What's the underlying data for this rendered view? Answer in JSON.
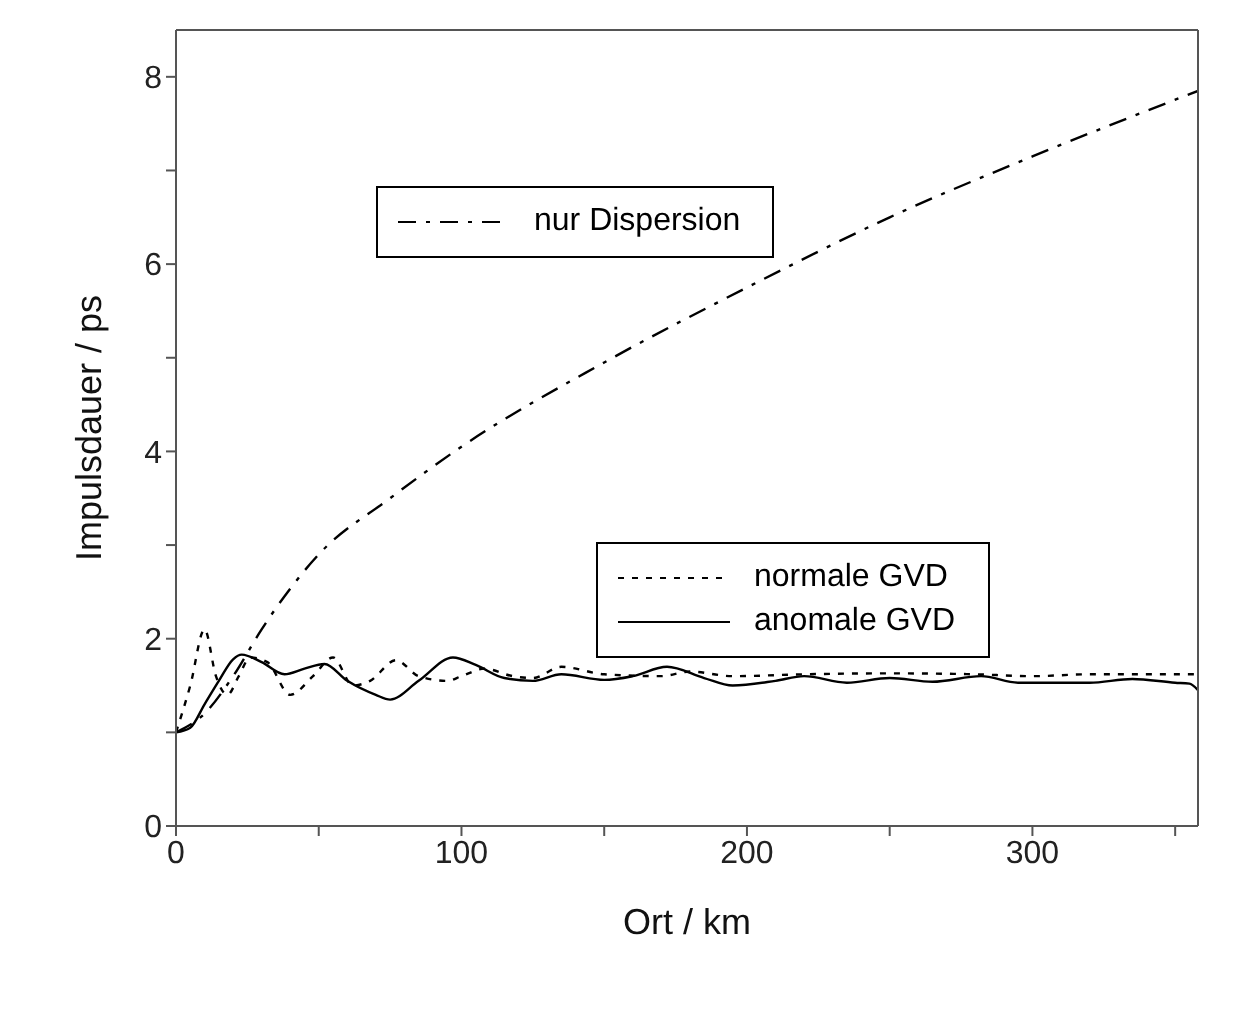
{
  "chart_data": {
    "type": "line",
    "xlabel": "Ort / km",
    "ylabel": "Impulsdauer / ps",
    "xlim": [
      0,
      358
    ],
    "ylim": [
      0,
      8.5
    ],
    "xticks": [
      0,
      {
        "value": 50,
        "label": null
      },
      100,
      {
        "value": 150,
        "label": null
      },
      200,
      {
        "value": 250,
        "label": null
      },
      300,
      {
        "value": 350,
        "label": null
      }
    ],
    "yticks": [
      0,
      {
        "value": 1,
        "label": null
      },
      2,
      {
        "value": 3,
        "label": null
      },
      4,
      {
        "value": 5,
        "label": null
      },
      6,
      {
        "value": 7,
        "label": null
      },
      8
    ],
    "legend": "right",
    "marker": "none",
    "series": [
      {
        "name": "nur Dispersion",
        "color": "#000000",
        "line_style": "dashdot",
        "x": [
          0,
          10,
          20,
          30,
          50,
          75,
          100,
          150,
          200,
          250,
          300,
          358
        ],
        "values": [
          1.0,
          1.2,
          1.6,
          2.1,
          2.9,
          3.5,
          4.05,
          4.95,
          5.75,
          6.5,
          7.15,
          7.85
        ]
      },
      {
        "name": "normale GVD",
        "color": "#000000",
        "line_style": "dotted",
        "x": [
          0,
          5,
          10,
          14,
          18,
          22,
          26,
          32,
          40,
          48,
          55,
          62,
          68,
          77,
          85,
          95,
          100,
          108,
          118,
          125,
          135,
          150,
          170,
          180,
          195,
          220,
          250,
          280,
          300,
          320,
          358
        ],
        "values": [
          1.0,
          1.5,
          2.1,
          1.6,
          1.4,
          1.6,
          1.8,
          1.75,
          1.4,
          1.6,
          1.8,
          1.5,
          1.55,
          1.77,
          1.6,
          1.55,
          1.6,
          1.68,
          1.6,
          1.58,
          1.7,
          1.62,
          1.6,
          1.65,
          1.6,
          1.62,
          1.63,
          1.62,
          1.6,
          1.62,
          1.62
        ]
      },
      {
        "name": "anomale GVD",
        "color": "#000000",
        "line_style": "solid",
        "x": [
          0,
          5,
          10,
          15,
          20,
          23,
          30,
          38,
          45,
          52,
          60,
          70,
          75,
          85,
          97,
          105,
          115,
          125,
          135,
          150,
          160,
          172,
          185,
          195,
          210,
          220,
          235,
          250,
          265,
          282,
          295,
          320,
          335,
          350,
          355,
          358
        ],
        "values": [
          1.0,
          1.05,
          1.3,
          1.55,
          1.78,
          1.83,
          1.75,
          1.62,
          1.68,
          1.73,
          1.55,
          1.4,
          1.35,
          1.55,
          1.8,
          1.72,
          1.58,
          1.55,
          1.62,
          1.56,
          1.6,
          1.7,
          1.58,
          1.5,
          1.55,
          1.6,
          1.53,
          1.58,
          1.54,
          1.6,
          1.53,
          1.53,
          1.57,
          1.53,
          1.52,
          1.45
        ]
      }
    ]
  }
}
